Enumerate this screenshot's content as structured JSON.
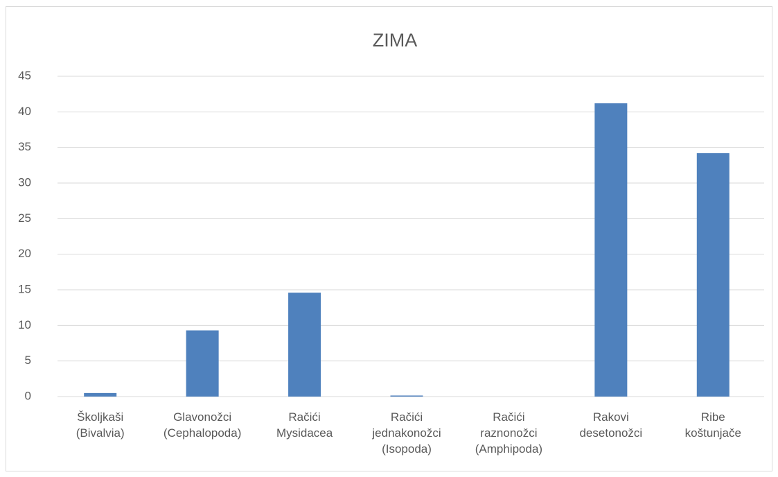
{
  "chart_data": {
    "type": "bar",
    "title": "ZIMA",
    "categories": [
      "Školjkaši (Bivalvia)",
      "Glavonožci (Cephalopoda)",
      "Račići Mysidacea",
      "Račići jednakonožci (Isopoda)",
      "Račići raznonožci (Amphipoda)",
      "Rakovi desetonožci",
      "Ribe koštunjače"
    ],
    "values": [
      0.5,
      9.3,
      14.6,
      0.15,
      0,
      41.2,
      34.2
    ],
    "color": "#4f81bd",
    "ylim": [
      0,
      45
    ],
    "yticks": [
      0,
      5,
      10,
      15,
      20,
      25,
      30,
      35,
      40,
      45
    ],
    "grid": true
  }
}
